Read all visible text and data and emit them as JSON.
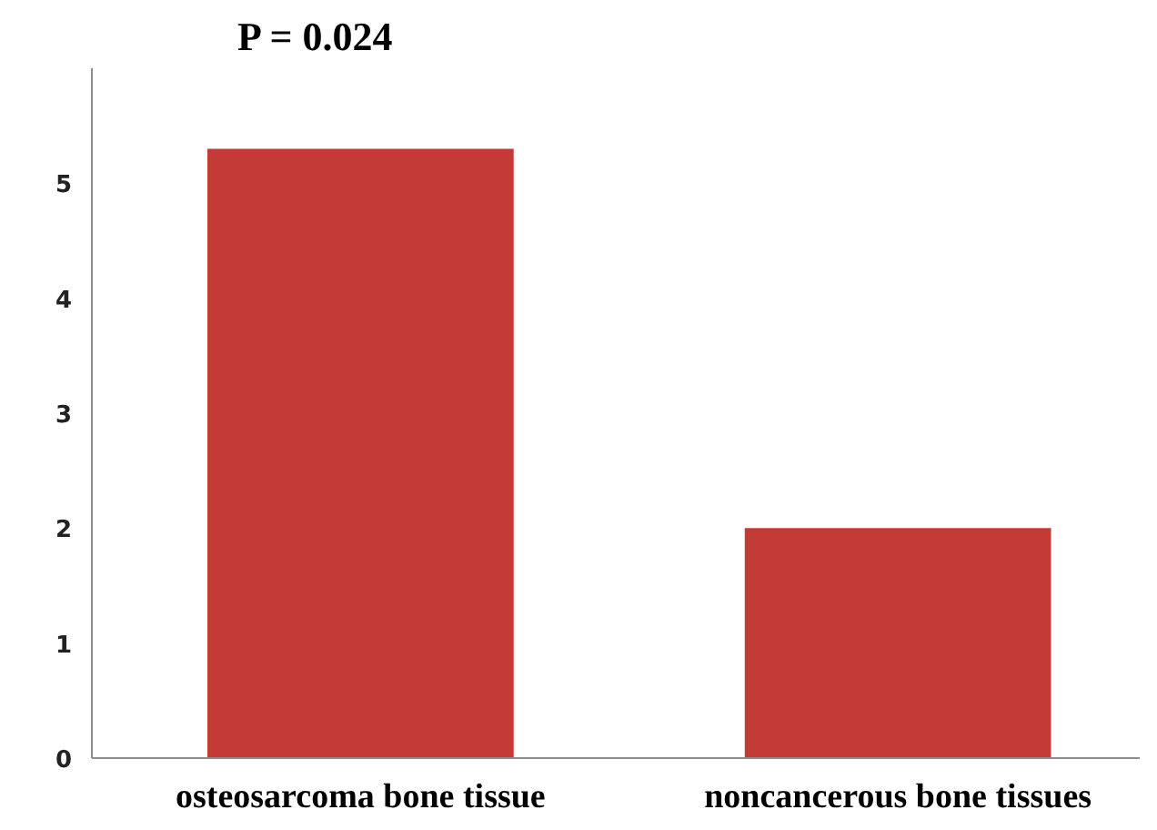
{
  "chart_data": {
    "type": "bar",
    "categories": [
      "osteosarcoma bone tissue",
      "noncancerous bone tissues"
    ],
    "values": [
      5.3,
      2.0
    ],
    "color": "#c43a36",
    "ylim": [
      0,
      6
    ],
    "yticks": [
      0,
      1,
      2,
      3,
      4,
      5
    ],
    "grid": false,
    "annotations": [
      "P = 0.024"
    ]
  }
}
